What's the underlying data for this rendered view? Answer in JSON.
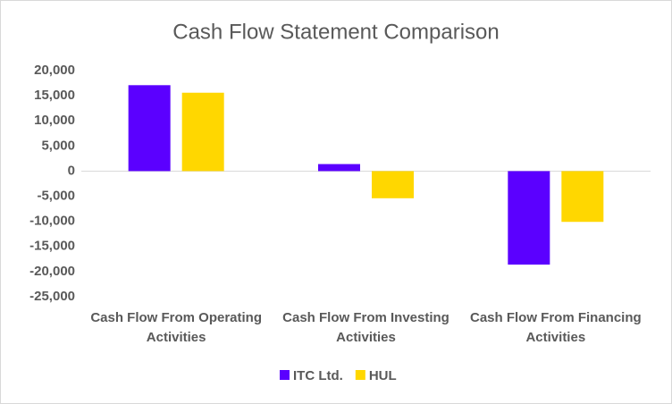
{
  "chart_data": {
    "type": "bar",
    "title": "Cash Flow Statement Comparison",
    "categories": [
      "Cash Flow From Operating Activities",
      "Cash Flow From Investing Activities",
      "Cash Flow From Financing Activities"
    ],
    "series": [
      {
        "name": "ITC Ltd.",
        "color": "#5b00ff",
        "values": [
          17100,
          1400,
          -18600
        ]
      },
      {
        "name": "HUL",
        "color": "#ffd700",
        "values": [
          15600,
          -5400,
          -10100
        ]
      }
    ],
    "ylim": [
      -25000,
      20000
    ],
    "yticks": [
      {
        "value": -25000,
        "label": "-25,000"
      },
      {
        "value": -20000,
        "label": "-20,000"
      },
      {
        "value": -15000,
        "label": "-15,000"
      },
      {
        "value": -10000,
        "label": "-10,000"
      },
      {
        "value": -5000,
        "label": "-5,000"
      },
      0,
      {
        "value": 5000,
        "label": "5,000"
      },
      {
        "value": 10000,
        "label": "10,000"
      },
      {
        "value": 15000,
        "label": "15,000"
      },
      {
        "value": 20000,
        "label": "20,000"
      }
    ],
    "grid": false,
    "legend": "bottom"
  }
}
